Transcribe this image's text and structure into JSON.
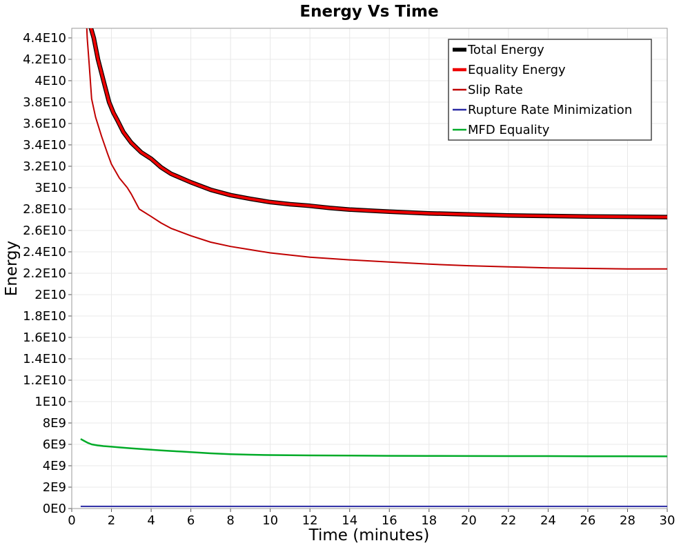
{
  "page": {
    "background": "#ffffff"
  },
  "chart_data": {
    "type": "line",
    "title": "Energy Vs Time",
    "xlabel": "Time (minutes)",
    "ylabel": "Energy",
    "xlim": [
      0,
      30
    ],
    "ylim": [
      0,
      44900000000.0
    ],
    "grid": true,
    "legend_position": "top-right",
    "x_ticks": [
      {
        "v": 0,
        "label": "0"
      },
      {
        "v": 2,
        "label": "2"
      },
      {
        "v": 4,
        "label": "4"
      },
      {
        "v": 6,
        "label": "6"
      },
      {
        "v": 8,
        "label": "8"
      },
      {
        "v": 10,
        "label": "10"
      },
      {
        "v": 12,
        "label": "12"
      },
      {
        "v": 14,
        "label": "14"
      },
      {
        "v": 16,
        "label": "16"
      },
      {
        "v": 18,
        "label": "18"
      },
      {
        "v": 20,
        "label": "20"
      },
      {
        "v": 22,
        "label": "22"
      },
      {
        "v": 24,
        "label": "24"
      },
      {
        "v": 26,
        "label": "26"
      },
      {
        "v": 28,
        "label": "28"
      },
      {
        "v": 30,
        "label": "30"
      }
    ],
    "y_ticks": [
      {
        "v": 0,
        "label": "0E0"
      },
      {
        "v": 2000000000.0,
        "label": "2E9"
      },
      {
        "v": 4000000000.0,
        "label": "4E9"
      },
      {
        "v": 6000000000.0,
        "label": "6E9"
      },
      {
        "v": 8000000000.0,
        "label": "8E9"
      },
      {
        "v": 10000000000.0,
        "label": "1E10"
      },
      {
        "v": 12000000000.0,
        "label": "1.2E10"
      },
      {
        "v": 14000000000.0,
        "label": "1.4E10"
      },
      {
        "v": 16000000000.0,
        "label": "1.6E10"
      },
      {
        "v": 18000000000.0,
        "label": "1.8E10"
      },
      {
        "v": 20000000000.0,
        "label": "2E10"
      },
      {
        "v": 22000000000.0,
        "label": "2.2E10"
      },
      {
        "v": 24000000000.0,
        "label": "2.4E10"
      },
      {
        "v": 26000000000.0,
        "label": "2.6E10"
      },
      {
        "v": 28000000000.0,
        "label": "2.8E10"
      },
      {
        "v": 30000000000.0,
        "label": "3E10"
      },
      {
        "v": 32000000000.0,
        "label": "3.2E10"
      },
      {
        "v": 34000000000.0,
        "label": "3.4E10"
      },
      {
        "v": 36000000000.0,
        "label": "3.6E10"
      },
      {
        "v": 38000000000.0,
        "label": "3.8E10"
      },
      {
        "v": 40000000000.0,
        "label": "4E10"
      },
      {
        "v": 42000000000.0,
        "label": "4.2E10"
      },
      {
        "v": 44000000000.0,
        "label": "4.4E10"
      }
    ],
    "series": [
      {
        "name": "Total Energy",
        "color": "#000000",
        "width": 6.5,
        "points": [
          [
            0.82,
            48000000000.0
          ],
          [
            0.88,
            46000000000.0
          ],
          [
            0.97,
            44900000000.0
          ],
          [
            1.11,
            44000000000.0
          ],
          [
            1.32,
            42000000000.0
          ],
          [
            1.6,
            40000000000.0
          ],
          [
            1.88,
            38000000000.0
          ],
          [
            2.1,
            37000000000.0
          ],
          [
            2.3,
            36300000000.0
          ],
          [
            2.6,
            35200000000.0
          ],
          [
            3.0,
            34200000000.0
          ],
          [
            3.5,
            33300000000.0
          ],
          [
            4.0,
            32700000000.0
          ],
          [
            4.5,
            31900000000.0
          ],
          [
            5.0,
            31300000000.0
          ],
          [
            5.5,
            30900000000.0
          ],
          [
            6.0,
            30500000000.0
          ],
          [
            7.0,
            29800000000.0
          ],
          [
            8.0,
            29300000000.0
          ],
          [
            9.0,
            28950000000.0
          ],
          [
            10.0,
            28650000000.0
          ],
          [
            11.0,
            28450000000.0
          ],
          [
            12.0,
            28300000000.0
          ],
          [
            13.0,
            28100000000.0
          ],
          [
            14.0,
            27950000000.0
          ],
          [
            15.0,
            27850000000.0
          ],
          [
            16.0,
            27750000000.0
          ],
          [
            18.0,
            27600000000.0
          ],
          [
            20.0,
            27500000000.0
          ],
          [
            22.0,
            27400000000.0
          ],
          [
            24.0,
            27350000000.0
          ],
          [
            26.0,
            27300000000.0
          ],
          [
            28.0,
            27280000000.0
          ],
          [
            30.0,
            27250000000.0
          ]
        ]
      },
      {
        "name": "Equality Energy",
        "color": "#ee0000",
        "width": 4,
        "points": [
          [
            0.82,
            48000000000.0
          ],
          [
            0.88,
            46000000000.0
          ],
          [
            0.97,
            44900000000.0
          ],
          [
            1.11,
            44000000000.0
          ],
          [
            1.32,
            42000000000.0
          ],
          [
            1.6,
            40000000000.0
          ],
          [
            1.88,
            38000000000.0
          ],
          [
            2.1,
            37000000000.0
          ],
          [
            2.3,
            36300000000.0
          ],
          [
            2.6,
            35200000000.0
          ],
          [
            3.0,
            34200000000.0
          ],
          [
            3.5,
            33300000000.0
          ],
          [
            4.0,
            32700000000.0
          ],
          [
            4.5,
            31900000000.0
          ],
          [
            5.0,
            31300000000.0
          ],
          [
            5.5,
            30900000000.0
          ],
          [
            6.0,
            30500000000.0
          ],
          [
            7.0,
            29800000000.0
          ],
          [
            8.0,
            29300000000.0
          ],
          [
            9.0,
            28950000000.0
          ],
          [
            10.0,
            28650000000.0
          ],
          [
            11.0,
            28450000000.0
          ],
          [
            12.0,
            28300000000.0
          ],
          [
            13.0,
            28100000000.0
          ],
          [
            14.0,
            27950000000.0
          ],
          [
            15.0,
            27850000000.0
          ],
          [
            16.0,
            27750000000.0
          ],
          [
            18.0,
            27600000000.0
          ],
          [
            20.0,
            27500000000.0
          ],
          [
            22.0,
            27400000000.0
          ],
          [
            24.0,
            27350000000.0
          ],
          [
            26.0,
            27300000000.0
          ],
          [
            28.0,
            27280000000.0
          ],
          [
            30.0,
            27250000000.0
          ]
        ]
      },
      {
        "name": "Slip Rate",
        "color": "#c00000",
        "width": 2,
        "points": [
          [
            0.68,
            48000000000.0
          ],
          [
            0.78,
            44000000000.0
          ],
          [
            0.88,
            41500000000.0
          ],
          [
            1.0,
            38300000000.0
          ],
          [
            1.2,
            36600000000.0
          ],
          [
            1.5,
            34800000000.0
          ],
          [
            1.8,
            33200000000.0
          ],
          [
            2.0,
            32200000000.0
          ],
          [
            2.4,
            30900000000.0
          ],
          [
            2.8,
            30000000000.0
          ],
          [
            3.0,
            29400000000.0
          ],
          [
            3.4,
            28000000000.0
          ],
          [
            4.0,
            27300000000.0
          ],
          [
            4.5,
            26700000000.0
          ],
          [
            5.0,
            26200000000.0
          ],
          [
            5.5,
            25850000000.0
          ],
          [
            6.0,
            25500000000.0
          ],
          [
            7.0,
            24900000000.0
          ],
          [
            8.0,
            24500000000.0
          ],
          [
            9.0,
            24200000000.0
          ],
          [
            10.0,
            23900000000.0
          ],
          [
            12.0,
            23500000000.0
          ],
          [
            14.0,
            23250000000.0
          ],
          [
            16.0,
            23050000000.0
          ],
          [
            18.0,
            22850000000.0
          ],
          [
            20.0,
            22700000000.0
          ],
          [
            22.0,
            22600000000.0
          ],
          [
            24.0,
            22500000000.0
          ],
          [
            26.0,
            22450000000.0
          ],
          [
            28.0,
            22400000000.0
          ],
          [
            30.0,
            22400000000.0
          ]
        ]
      },
      {
        "name": "Rupture Rate Minimization",
        "color": "#2929a3",
        "width": 2,
        "points": [
          [
            0.45,
            200000000.0
          ],
          [
            10.0,
            200000000.0
          ],
          [
            20.0,
            200000000.0
          ],
          [
            30.0,
            200000000.0
          ]
        ]
      },
      {
        "name": "MFD Equality",
        "color": "#00ab28",
        "width": 2.5,
        "points": [
          [
            0.45,
            6500000000.0
          ],
          [
            0.6,
            6350000000.0
          ],
          [
            0.8,
            6150000000.0
          ],
          [
            1.0,
            6000000000.0
          ],
          [
            1.3,
            5900000000.0
          ],
          [
            1.6,
            5840000000.0
          ],
          [
            2.0,
            5780000000.0
          ],
          [
            2.5,
            5700000000.0
          ],
          [
            3.0,
            5630000000.0
          ],
          [
            3.5,
            5560000000.0
          ],
          [
            4.0,
            5500000000.0
          ],
          [
            4.5,
            5440000000.0
          ],
          [
            5.0,
            5380000000.0
          ],
          [
            5.5,
            5330000000.0
          ],
          [
            6.0,
            5280000000.0
          ],
          [
            7.0,
            5160000000.0
          ],
          [
            8.0,
            5080000000.0
          ],
          [
            9.0,
            5030000000.0
          ],
          [
            10.0,
            5000000000.0
          ],
          [
            12.0,
            4970000000.0
          ],
          [
            14.0,
            4950000000.0
          ],
          [
            16.0,
            4930000000.0
          ],
          [
            18.0,
            4920000000.0
          ],
          [
            20.0,
            4910000000.0
          ],
          [
            22.0,
            4900000000.0
          ],
          [
            24.0,
            4900000000.0
          ],
          [
            26.0,
            4890000000.0
          ],
          [
            28.0,
            4885000000.0
          ],
          [
            30.0,
            4880000000.0
          ]
        ]
      }
    ]
  }
}
